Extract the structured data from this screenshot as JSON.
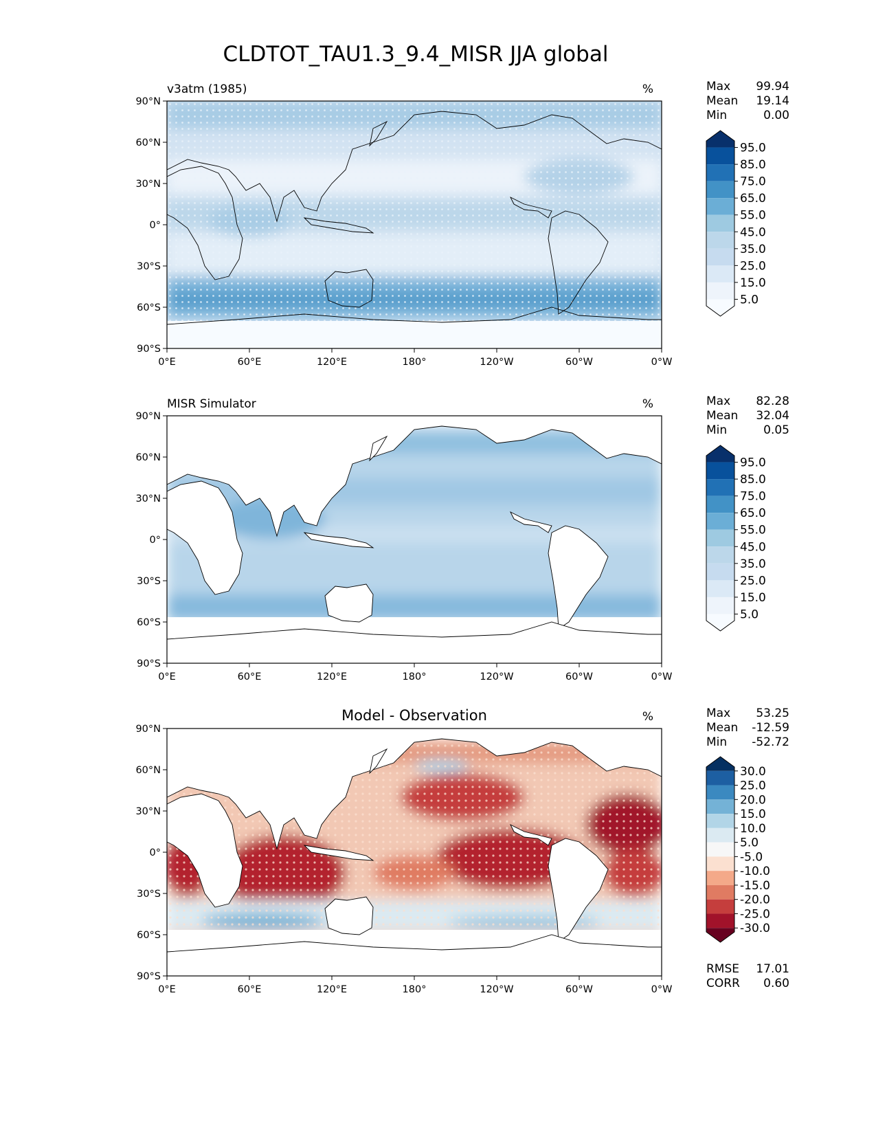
{
  "title": "CLDTOT_TAU1.3_9.4_MISR JJA global",
  "lon_ticks": [
    "0°E",
    "60°E",
    "120°E",
    "180°",
    "120°W",
    "60°W",
    "0°W"
  ],
  "lat_ticks": [
    "90°N",
    "60°N",
    "30°N",
    "0°",
    "30°S",
    "60°S",
    "90°S"
  ],
  "panels": [
    {
      "id": "model",
      "left_title": "v3atm (1985)",
      "center_title": "",
      "units": "%",
      "stats": [
        {
          "label": "Max",
          "value": "99.94"
        },
        {
          "label": "Mean",
          "value": "19.14"
        },
        {
          "label": "Min",
          "value": "0.00"
        }
      ],
      "colorbar": {
        "labels": [
          "95.0",
          "85.0",
          "75.0",
          "65.0",
          "55.0",
          "45.0",
          "35.0",
          "25.0",
          "15.0",
          "5.0"
        ],
        "colors": [
          "#08306b",
          "#08519c",
          "#2171b5",
          "#4292c6",
          "#6baed6",
          "#9ecae1",
          "#bcd7ea",
          "#c6dbef",
          "#dbe9f6",
          "#eef4fb",
          "#f7fbff"
        ]
      },
      "extra_stats": []
    },
    {
      "id": "obs",
      "left_title": "MISR Simulator",
      "center_title": "",
      "units": "%",
      "stats": [
        {
          "label": "Max",
          "value": "82.28"
        },
        {
          "label": "Mean",
          "value": "32.04"
        },
        {
          "label": "Min",
          "value": "0.05"
        }
      ],
      "colorbar": {
        "labels": [
          "95.0",
          "85.0",
          "75.0",
          "65.0",
          "55.0",
          "45.0",
          "35.0",
          "25.0",
          "15.0",
          "5.0"
        ],
        "colors": [
          "#08306b",
          "#08519c",
          "#2171b5",
          "#4292c6",
          "#6baed6",
          "#9ecae1",
          "#bcd7ea",
          "#c6dbef",
          "#dbe9f6",
          "#eef4fb",
          "#f7fbff"
        ]
      },
      "extra_stats": []
    },
    {
      "id": "diff",
      "left_title": "",
      "center_title": "Model - Observation",
      "units": "%",
      "stats": [
        {
          "label": "Max",
          "value": "53.25"
        },
        {
          "label": "Mean",
          "value": "-12.59"
        },
        {
          "label": "Min",
          "value": "-52.72"
        }
      ],
      "colorbar": {
        "labels": [
          "30.0",
          "25.0",
          "20.0",
          "15.0",
          "10.0",
          "5.0",
          "-5.0",
          "-10.0",
          "-15.0",
          "-20.0",
          "-25.0",
          "-30.0"
        ],
        "colors": [
          "#053061",
          "#1d5fa2",
          "#3b89c0",
          "#74b2d6",
          "#b2d5e7",
          "#dbeaf2",
          "#f7f7f7",
          "#fbe0d0",
          "#f4a989",
          "#e07b62",
          "#c53e3d",
          "#a1122a",
          "#67001f"
        ]
      },
      "extra_stats": [
        {
          "label": "RMSE",
          "value": "17.01"
        },
        {
          "label": "CORR",
          "value": "0.60"
        }
      ]
    }
  ],
  "colors": {
    "model_open_ocean": "#c6dbef",
    "model_storm_track": "#6baed6",
    "obs_ocean": "#a9cce4",
    "diff_negative": "#b2182b",
    "diff_neutral": "#f7f7f7",
    "diff_positive": "#4393c3"
  }
}
